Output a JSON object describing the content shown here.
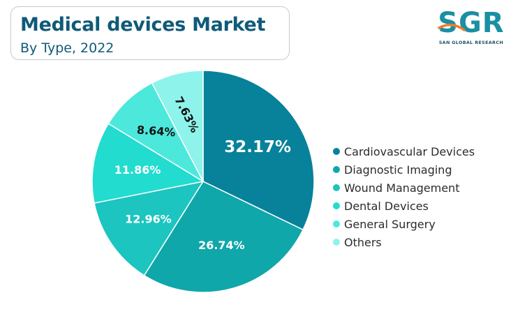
{
  "header": {
    "title": "Medical devices Market",
    "subtitle": "By Type, 2022"
  },
  "logo": {
    "wordmark": "SGR",
    "caption": "SAN GLOBAL RESEARCH",
    "color_primary": "#1b8fa3",
    "color_accent": "#f07b2b"
  },
  "chart_data": {
    "type": "pie",
    "title": "Medical devices Market",
    "subtitle": "By Type, 2022",
    "start_angle": "12 o'clock, clockwise",
    "legend_position": "right",
    "slices": [
      {
        "label": "Cardiovascular Devices",
        "value": 32.17,
        "display": "32.17%",
        "color": "#08819a",
        "label_color": "#ffffff",
        "label_rotate": false
      },
      {
        "label": "Diagnostic Imaging",
        "value": 26.74,
        "display": "26.74%",
        "color": "#10a7aa",
        "label_color": "#ffffff",
        "label_rotate": false
      },
      {
        "label": "Wound Management",
        "value": 12.96,
        "display": "12.96%",
        "color": "#1cc5bf",
        "label_color": "#ffffff",
        "label_rotate": false
      },
      {
        "label": "Dental Devices",
        "value": 11.86,
        "display": "11.86%",
        "color": "#22dccf",
        "label_color": "#ffffff",
        "label_rotate": false
      },
      {
        "label": "General Surgery",
        "value": 8.64,
        "display": "8.64%",
        "color": "#4de8dc",
        "label_color": "#111111",
        "label_rotate": true
      },
      {
        "label": "Others",
        "value": 7.63,
        "display": "7.63%",
        "color": "#8ef3ea",
        "label_color": "#111111",
        "label_rotate": true
      }
    ]
  }
}
